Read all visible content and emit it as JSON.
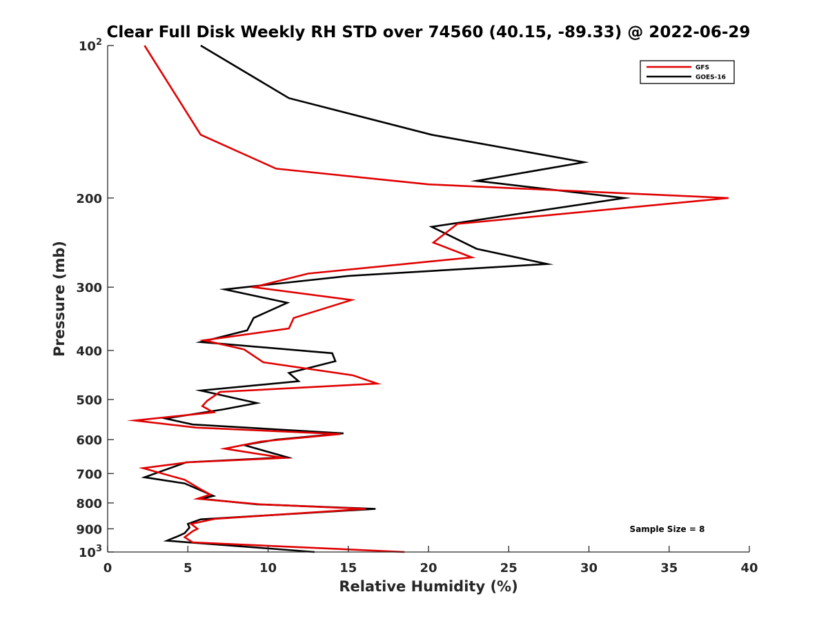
{
  "chart_data": {
    "type": "line",
    "title": "Clear Full Disk Weekly RH STD over 74560 (40.15, -89.33) @ 2022-06-29",
    "xlabel": "Relative Humidity (%)",
    "ylabel": "Pressure (mb)",
    "xlim": [
      0,
      40
    ],
    "ylim": [
      100,
      1000
    ],
    "y_scale": "log",
    "y_reversed": true,
    "x_ticks": [
      0,
      5,
      10,
      15,
      20,
      25,
      30,
      35,
      40
    ],
    "x_tick_labels": [
      "0",
      "5",
      "10",
      "15",
      "20",
      "25",
      "30",
      "35",
      "40"
    ],
    "y_ticks": [
      100,
      200,
      300,
      400,
      500,
      600,
      700,
      800,
      900,
      1000
    ],
    "y_tick_labels": [
      "10²",
      "200",
      "300",
      "400",
      "500",
      "600",
      "700",
      "800",
      "900",
      "10³"
    ],
    "grid": false,
    "legend_position": "top-right",
    "annotation": "Sample Size = 8",
    "series": [
      {
        "name": "GFS",
        "color": "#e00000",
        "points": [
          [
            2.3,
            100
          ],
          [
            5.8,
            150
          ],
          [
            10.5,
            175
          ],
          [
            20.0,
            188
          ],
          [
            38.7,
            200
          ],
          [
            21.8,
            225
          ],
          [
            20.3,
            245
          ],
          [
            22.7,
            262
          ],
          [
            12.5,
            282
          ],
          [
            9.1,
            300
          ],
          [
            15.2,
            318
          ],
          [
            11.6,
            345
          ],
          [
            11.3,
            362
          ],
          [
            6.0,
            382
          ],
          [
            8.5,
            398
          ],
          [
            9.7,
            422
          ],
          [
            15.3,
            448
          ],
          [
            16.8,
            465
          ],
          [
            7.0,
            483
          ],
          [
            6.2,
            503
          ],
          [
            5.9,
            515
          ],
          [
            6.6,
            530
          ],
          [
            1.7,
            550
          ],
          [
            5.5,
            568
          ],
          [
            14.5,
            585
          ],
          [
            9.6,
            605
          ],
          [
            7.3,
            625
          ],
          [
            11.0,
            652
          ],
          [
            5.0,
            665
          ],
          [
            2.2,
            683
          ],
          [
            4.8,
            720
          ],
          [
            5.8,
            752
          ],
          [
            6.4,
            770
          ],
          [
            5.6,
            785
          ],
          [
            9.5,
            805
          ],
          [
            16.1,
            822
          ],
          [
            6.7,
            860
          ],
          [
            5.2,
            880
          ],
          [
            5.6,
            900
          ],
          [
            5.3,
            910
          ],
          [
            4.8,
            935
          ],
          [
            5.3,
            957
          ],
          [
            18.5,
            1000
          ]
        ]
      },
      {
        "name": "GOES-16",
        "color": "#000000",
        "points": [
          [
            5.8,
            100
          ],
          [
            11.3,
            127
          ],
          [
            20.2,
            150
          ],
          [
            29.7,
            170
          ],
          [
            23.0,
            185
          ],
          [
            32.2,
            200
          ],
          [
            20.2,
            228
          ],
          [
            23.0,
            252
          ],
          [
            27.4,
            270
          ],
          [
            15.0,
            285
          ],
          [
            7.3,
            303
          ],
          [
            11.2,
            322
          ],
          [
            9.1,
            345
          ],
          [
            8.7,
            365
          ],
          [
            5.8,
            385
          ],
          [
            14.0,
            405
          ],
          [
            14.2,
            420
          ],
          [
            11.3,
            443
          ],
          [
            11.9,
            460
          ],
          [
            5.8,
            480
          ],
          [
            9.3,
            508
          ],
          [
            7.2,
            523
          ],
          [
            3.6,
            545
          ],
          [
            5.3,
            560
          ],
          [
            14.7,
            583
          ],
          [
            10.5,
            600
          ],
          [
            8.5,
            615
          ],
          [
            11.2,
            650
          ],
          [
            4.9,
            665
          ],
          [
            2.3,
            712
          ],
          [
            4.8,
            732
          ],
          [
            6.6,
            775
          ],
          [
            5.8,
            785
          ],
          [
            9.3,
            805
          ],
          [
            16.7,
            822
          ],
          [
            5.8,
            862
          ],
          [
            5.0,
            880
          ],
          [
            5.1,
            895
          ],
          [
            4.8,
            918
          ],
          [
            4.4,
            930
          ],
          [
            3.7,
            950
          ],
          [
            12.9,
            1000
          ]
        ]
      }
    ]
  }
}
